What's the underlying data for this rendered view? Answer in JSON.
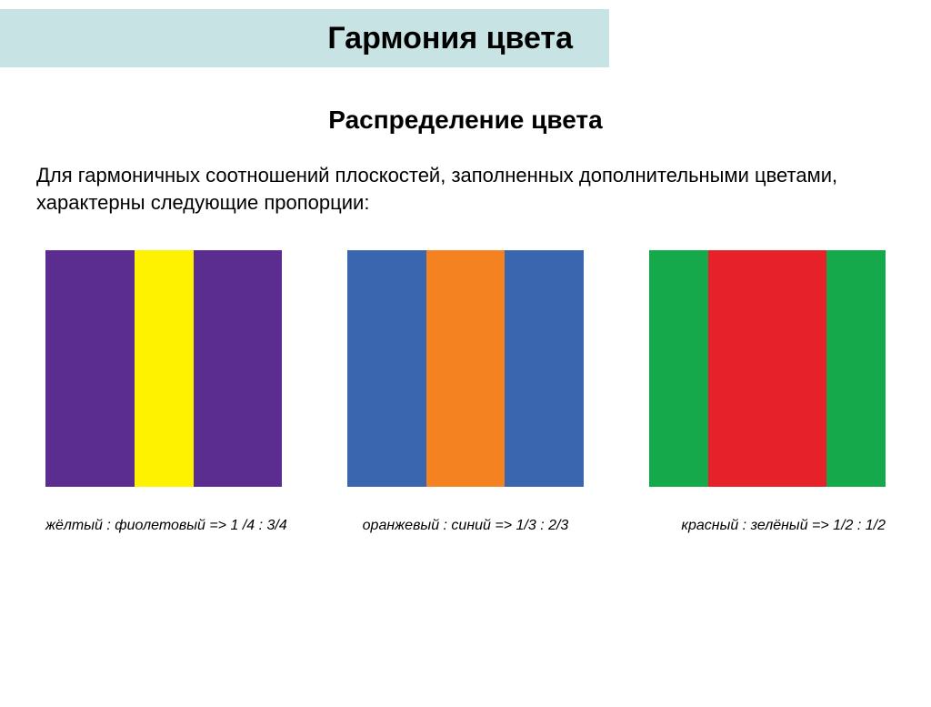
{
  "colors": {
    "title_bar_bg": "#c7e3e3",
    "page_bg": "#ffffff",
    "text": "#000000"
  },
  "title": "Гармония цвета",
  "subtitle": "Распределение цвета",
  "description": "Для гармоничных соотношений плоскостей, заполненных дополнительными цветами, характерны следующие пропорции:",
  "swatches": [
    {
      "type": "stripes",
      "stripes": [
        {
          "color": "#5b2d91",
          "fraction": 0.375
        },
        {
          "color": "#fff200",
          "fraction": 0.25
        },
        {
          "color": "#5b2d91",
          "fraction": 0.375
        }
      ],
      "caption": "жёлтый : фиолетовый => 1 /4 : 3/4"
    },
    {
      "type": "stripes",
      "stripes": [
        {
          "color": "#3a66b0",
          "fraction": 0.3333
        },
        {
          "color": "#f58220",
          "fraction": 0.3334
        },
        {
          "color": "#3a66b0",
          "fraction": 0.3333
        }
      ],
      "caption": "оранжевый : синий => 1/3 : 2/3"
    },
    {
      "type": "stripes",
      "stripes": [
        {
          "color": "#15a94c",
          "fraction": 0.25
        },
        {
          "color": "#e6212a",
          "fraction": 0.5
        },
        {
          "color": "#15a94c",
          "fraction": 0.25
        }
      ],
      "caption": "красный : зелёный => 1/2 : 1/2"
    }
  ]
}
